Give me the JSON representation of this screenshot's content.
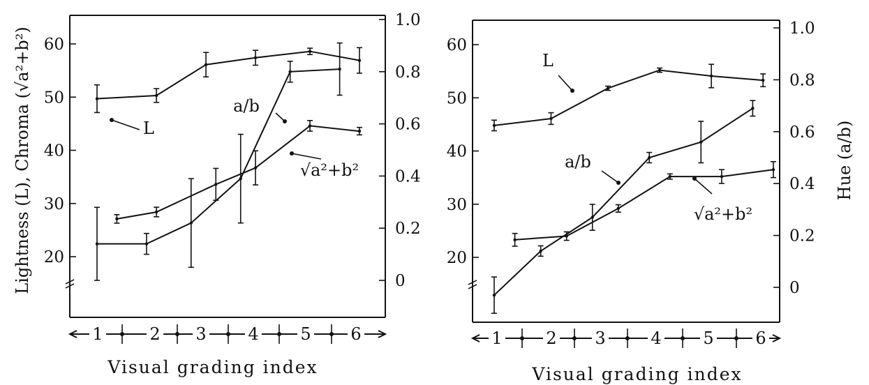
{
  "chart_data": [
    {
      "type": "line",
      "xlabel": "Visual grading index",
      "ylabel": "Lightness (L), Chroma (√a²+b²)",
      "y2label": "",
      "yticks": [
        "20",
        "30",
        "40",
        "50",
        "60"
      ],
      "y2ticks": [
        "0",
        "0.2",
        "0.4",
        "0.6",
        "0.8",
        "1.0"
      ],
      "xticks": [
        "1",
        "2",
        "3",
        "4",
        "5",
        "6"
      ],
      "series": [
        {
          "name": "L",
          "axis": "left",
          "x": [
            0.3,
            1.5,
            2.5,
            3.5,
            4.6,
            5.6
          ],
          "y": [
            49.7,
            50.3,
            56.1,
            57.4,
            58.6,
            56.9
          ],
          "err": [
            2.6,
            1.3,
            2.3,
            1.4,
            0.6,
            2.4
          ]
        },
        {
          "name": "√a²+b²",
          "axis": "left",
          "x": [
            0.7,
            1.5,
            2.7,
            3.5,
            4.6,
            5.6
          ],
          "y": [
            27.1,
            28.4,
            33.6,
            36.7,
            44.6,
            43.6
          ],
          "err": [
            0.8,
            0.9,
            3.0,
            3.2,
            1.0,
            0.7
          ]
        },
        {
          "name": "a/b",
          "axis": "right",
          "x": [
            0.3,
            1.3,
            2.2,
            3.2,
            4.2,
            5.2
          ],
          "y": [
            0.14,
            0.14,
            0.22,
            0.39,
            0.8,
            0.81
          ],
          "err": [
            0.14,
            0.04,
            0.17,
            0.17,
            0.04,
            0.1
          ]
        }
      ]
    },
    {
      "type": "line",
      "xlabel": "Visual grading index",
      "ylabel": "",
      "y2label": "Hue (a/b)",
      "yticks": [
        "20",
        "30",
        "40",
        "50",
        "60"
      ],
      "y2ticks": [
        "0",
        "0.2",
        "0.4",
        "0.6",
        "0.8",
        "1.0"
      ],
      "xticks": [
        "1",
        "2",
        "3",
        "4",
        "5",
        "6"
      ],
      "series": [
        {
          "name": "L",
          "axis": "left",
          "x": [
            0.2,
            1.3,
            2.4,
            3.4,
            4.4,
            5.4
          ],
          "y": [
            44.8,
            46.1,
            51.8,
            55.2,
            54.1,
            53.3
          ],
          "err": [
            1.0,
            1.1,
            0.4,
            0.4,
            2.2,
            1.2
          ]
        },
        {
          "name": "√a²+b²",
          "axis": "left",
          "x": [
            0.6,
            1.6,
            2.6,
            3.6,
            4.6,
            5.6
          ],
          "y": [
            23.3,
            24.0,
            29.2,
            35.2,
            35.2,
            36.5
          ],
          "err": [
            1.2,
            0.8,
            0.7,
            0.5,
            1.3,
            1.5
          ]
        },
        {
          "name": "a/b",
          "axis": "right",
          "x": [
            0.2,
            1.1,
            2.1,
            3.2,
            4.2,
            5.2
          ],
          "y": [
            -0.03,
            0.14,
            0.27,
            0.5,
            0.56,
            0.69
          ],
          "err": [
            0.07,
            0.02,
            0.05,
            0.02,
            0.08,
            0.03
          ]
        }
      ]
    }
  ]
}
